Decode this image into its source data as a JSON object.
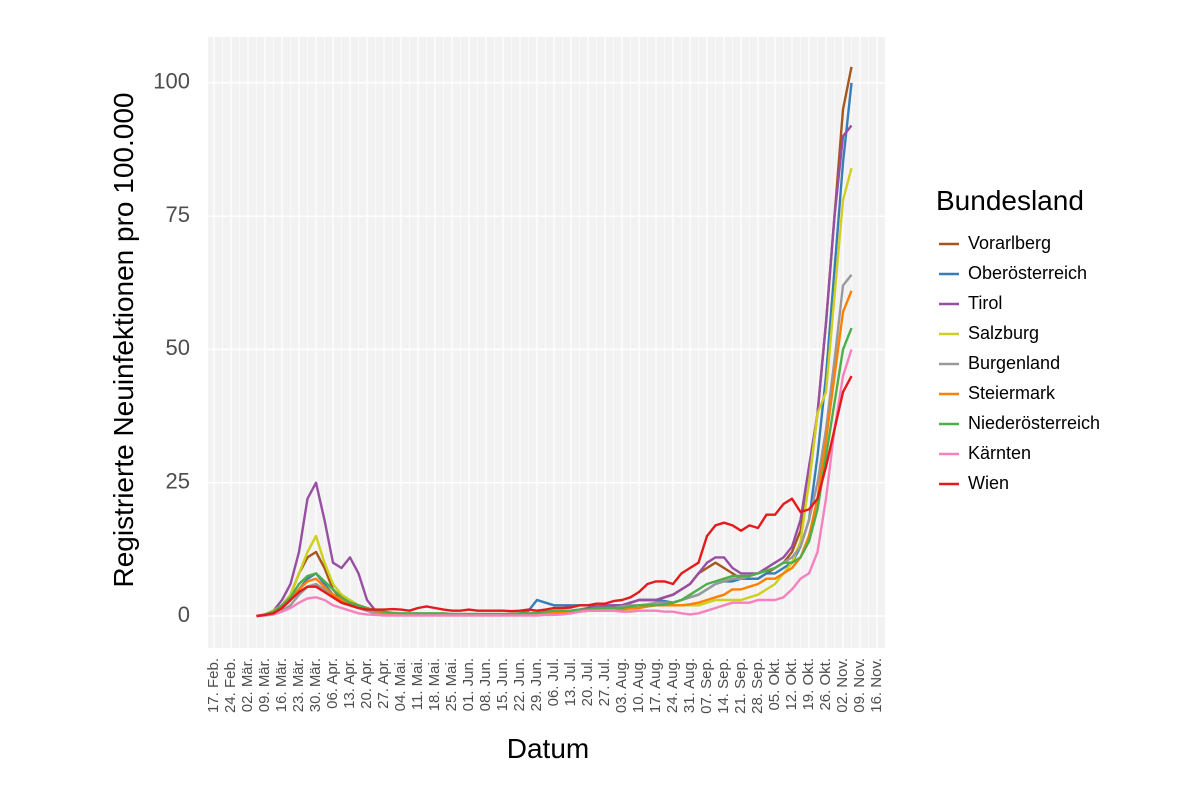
{
  "chart_data": {
    "type": "line",
    "x_label": "Datum",
    "y_label": "Registrierte Neuinfektionen pro 100.000",
    "legend_title": "Bundesland",
    "legend_position": "right",
    "grid": true,
    "ylim": [
      -6,
      108.6
    ],
    "yticks": [
      0,
      25,
      50,
      75,
      100
    ],
    "categories": [
      "17. Feb.",
      null,
      "24. Feb.",
      null,
      "02. Mär.",
      null,
      "09. Mär.",
      null,
      "16. Mär.",
      null,
      "23. Mär.",
      null,
      "30. Mär.",
      null,
      "06. Apr.",
      null,
      "13. Apr.",
      null,
      "20. Apr.",
      null,
      "27. Apr.",
      null,
      "04. Mai.",
      null,
      "11. Mai.",
      null,
      "18. Mai.",
      null,
      "25. Mai.",
      null,
      "01. Jun.",
      null,
      "08. Jun.",
      null,
      "15. Jun.",
      null,
      "22. Jun.",
      null,
      "29. Jun.",
      null,
      "06. Jul.",
      null,
      "13. Jul.",
      null,
      "20. Jul.",
      null,
      "27. Jul.",
      null,
      "03. Aug.",
      null,
      "10. Aug.",
      null,
      "17. Aug.",
      null,
      "24. Aug.",
      null,
      "31. Aug.",
      null,
      "07. Sep.",
      null,
      "14. Sep.",
      null,
      "21. Sep.",
      null,
      "28. Sep.",
      null,
      "05. Okt.",
      null,
      "12. Okt.",
      null,
      "19. Okt.",
      null,
      "26. Okt.",
      null,
      "02. Nov.",
      null,
      "09. Nov.",
      null,
      "16. Nov."
    ],
    "series": [
      {
        "name": "Vorarlberg",
        "color": "#a6561f",
        "values": [
          null,
          null,
          null,
          null,
          null,
          0,
          0.2,
          0.8,
          2,
          4,
          8,
          11,
          12,
          9,
          5,
          3,
          2,
          1.5,
          1,
          0.5,
          0.3,
          0.2,
          0.2,
          0.2,
          0.2,
          0.2,
          0.2,
          0.2,
          0.2,
          0.2,
          0.2,
          0.2,
          0.2,
          0.2,
          0.2,
          0.2,
          0.2,
          0.2,
          0.3,
          0.5,
          0.8,
          1,
          1,
          1,
          1.2,
          1.5,
          1.5,
          1.8,
          2,
          2.5,
          3,
          3,
          3,
          3.5,
          4,
          5,
          6,
          8,
          9,
          10,
          9,
          8,
          7,
          7,
          7,
          8,
          9,
          10,
          12,
          16,
          25,
          38,
          55,
          75,
          95,
          103,
          null,
          null,
          null
        ]
      },
      {
        "name": "Oberösterreich",
        "color": "#377eb8",
        "values": [
          null,
          null,
          null,
          null,
          null,
          0,
          0.2,
          0.5,
          1.5,
          3,
          5,
          7,
          8,
          6,
          4,
          3,
          2,
          1.5,
          1,
          0.5,
          0.3,
          0.3,
          0.3,
          0.3,
          0.3,
          0.3,
          0.3,
          0.3,
          0.3,
          0.3,
          0.3,
          0.3,
          0.3,
          0.3,
          0.3,
          0.3,
          0.5,
          1,
          3,
          2.5,
          2,
          2,
          2,
          2,
          2,
          1.8,
          1.8,
          2,
          2,
          2.5,
          3,
          3,
          3,
          2.8,
          2.5,
          3,
          3.5,
          4,
          5,
          6,
          6.5,
          6.5,
          7,
          7,
          7,
          8,
          8,
          9,
          10,
          13,
          18,
          30,
          45,
          65,
          85,
          100,
          null,
          null,
          null
        ]
      },
      {
        "name": "Tirol",
        "color": "#984ea3",
        "values": [
          null,
          null,
          null,
          null,
          null,
          0,
          0.3,
          1,
          3,
          6,
          12,
          22,
          25,
          18,
          10,
          9,
          11,
          8,
          3,
          1,
          0.5,
          0.3,
          0.2,
          0.2,
          0.2,
          0.2,
          0.2,
          0.2,
          0.2,
          0.2,
          0.2,
          0.2,
          0.2,
          0.2,
          0.2,
          0.2,
          0.2,
          0.2,
          0.3,
          0.5,
          0.8,
          1,
          1,
          1.2,
          1.5,
          1.8,
          2,
          2,
          2,
          2.5,
          3,
          3,
          3,
          3.5,
          4,
          5,
          6,
          8,
          10,
          11,
          11,
          9,
          8,
          8,
          8,
          9,
          10,
          11,
          13,
          18,
          28,
          38,
          55,
          75,
          90,
          92,
          null,
          null,
          null
        ]
      },
      {
        "name": "Salzburg",
        "color": "#cfcf1f",
        "values": [
          null,
          null,
          null,
          null,
          null,
          0,
          0.3,
          1,
          2,
          4,
          8,
          12,
          15,
          10,
          6,
          4,
          3,
          2,
          1,
          0.5,
          0.3,
          0.2,
          0.2,
          0.2,
          0.2,
          0.2,
          0.2,
          0.2,
          0.2,
          0.2,
          0.2,
          0.2,
          0.2,
          0.2,
          0.2,
          0.2,
          0.2,
          0.2,
          0.3,
          0.5,
          0.5,
          0.5,
          0.6,
          0.8,
          1,
          1,
          1,
          1,
          1,
          1.2,
          1.5,
          1.8,
          2,
          2,
          2,
          2,
          2,
          2,
          2.5,
          3,
          3,
          3,
          3,
          3.5,
          4,
          5,
          6,
          8,
          10,
          14,
          25,
          38,
          42,
          60,
          78,
          84,
          null,
          null,
          null
        ]
      },
      {
        "name": "Burgenland",
        "color": "#999999",
        "values": [
          null,
          null,
          null,
          null,
          null,
          0,
          0.2,
          0.5,
          1,
          2,
          4,
          5.5,
          6,
          5,
          3.5,
          2.5,
          2,
          1.5,
          1,
          0.5,
          0.3,
          0.3,
          0.3,
          0.3,
          0.3,
          0.3,
          0.3,
          0.3,
          0.3,
          0.3,
          0.3,
          0.3,
          0.3,
          0.3,
          0.3,
          0.3,
          0.3,
          0.3,
          0.4,
          0.5,
          0.6,
          0.8,
          1,
          1,
          1.2,
          1.5,
          1.5,
          1.5,
          1.8,
          2,
          2,
          2.2,
          2.5,
          2.5,
          2.5,
          3,
          3.5,
          4,
          5,
          6,
          6.5,
          7,
          7,
          7.5,
          8,
          8.5,
          9,
          10,
          11,
          13,
          18,
          25,
          35,
          48,
          62,
          64,
          null,
          null,
          null
        ]
      },
      {
        "name": "Steiermark",
        "color": "#ff7f00",
        "values": [
          null,
          null,
          null,
          null,
          null,
          0,
          0.2,
          0.5,
          1.5,
          3,
          5,
          6.5,
          7,
          5.5,
          4,
          3,
          2.5,
          2,
          1.5,
          1,
          0.5,
          0.4,
          0.3,
          0.3,
          0.3,
          0.3,
          0.3,
          0.3,
          0.3,
          0.3,
          0.3,
          0.3,
          0.3,
          0.3,
          0.3,
          0.3,
          0.3,
          0.3,
          0.4,
          0.5,
          0.5,
          0.6,
          0.8,
          0.8,
          1,
          1,
          1,
          1,
          1.2,
          1.5,
          1.5,
          1.8,
          2,
          2,
          2,
          2,
          2.2,
          2.5,
          3,
          3.5,
          4,
          5,
          5,
          5.5,
          6,
          7,
          7,
          8,
          9,
          11,
          15,
          22,
          33,
          45,
          57,
          61,
          null,
          null,
          null
        ]
      },
      {
        "name": "Niederösterreich",
        "color": "#4daf4a",
        "values": [
          null,
          null,
          null,
          null,
          null,
          0,
          0.3,
          0.8,
          2,
          3.5,
          6,
          7.5,
          8,
          6.5,
          5,
          3.5,
          2.5,
          2,
          1.5,
          1,
          0.8,
          0.6,
          0.5,
          0.5,
          0.5,
          0.5,
          0.5,
          0.5,
          0.4,
          0.4,
          0.4,
          0.4,
          0.4,
          0.4,
          0.4,
          0.4,
          0.5,
          0.5,
          0.6,
          0.8,
          1,
          1,
          1,
          1.2,
          1.2,
          1.5,
          1.5,
          1.5,
          1.5,
          1.8,
          2,
          2,
          2,
          2.2,
          2.5,
          3,
          4,
          5,
          6,
          6.5,
          7,
          7.5,
          7.5,
          7.5,
          8,
          8.5,
          9,
          10,
          10,
          11,
          14,
          20,
          30,
          40,
          50,
          54,
          null,
          null,
          null
        ]
      },
      {
        "name": "Kärnten",
        "color": "#f781bf",
        "values": [
          null,
          null,
          null,
          null,
          null,
          0,
          0.1,
          0.3,
          0.8,
          1.5,
          2.5,
          3.3,
          3.5,
          3,
          2,
          1.5,
          1,
          0.5,
          0.3,
          0.2,
          0.1,
          0.1,
          0.1,
          0.1,
          0.1,
          0.1,
          0.1,
          0.1,
          0.1,
          0.1,
          0.1,
          0.1,
          0.1,
          0.1,
          0.1,
          0.1,
          0.1,
          0.1,
          0.1,
          0.2,
          0.2,
          0.3,
          0.5,
          0.8,
          1,
          1,
          1,
          1,
          0.8,
          0.8,
          1,
          1,
          1,
          0.8,
          0.8,
          0.5,
          0.3,
          0.5,
          1,
          1.5,
          2,
          2.5,
          2.5,
          2.5,
          3,
          3,
          3,
          3.5,
          5,
          7,
          8,
          12,
          22,
          35,
          45,
          50,
          null,
          null,
          null
        ]
      },
      {
        "name": "Wien",
        "color": "#e41a1c",
        "values": [
          null,
          null,
          null,
          null,
          null,
          0,
          0.2,
          0.5,
          1.5,
          3,
          4.5,
          5.5,
          5.5,
          4.5,
          3.5,
          2.5,
          2,
          1.5,
          1.2,
          1.2,
          1.2,
          1.3,
          1.2,
          1,
          1.5,
          1.8,
          1.5,
          1.2,
          1,
          1,
          1.2,
          1,
          1,
          1,
          1,
          0.9,
          1,
          1.2,
          1,
          1.2,
          1.5,
          1.5,
          1.6,
          2,
          2,
          2.3,
          2.3,
          2.8,
          3,
          3.5,
          4.5,
          6,
          6.5,
          6.5,
          6,
          8,
          9,
          10,
          15,
          17,
          17.5,
          17,
          16,
          17,
          16.5,
          19,
          19,
          21,
          22,
          19.5,
          20,
          22,
          28,
          35,
          42,
          45,
          null,
          null,
          null
        ]
      }
    ]
  }
}
